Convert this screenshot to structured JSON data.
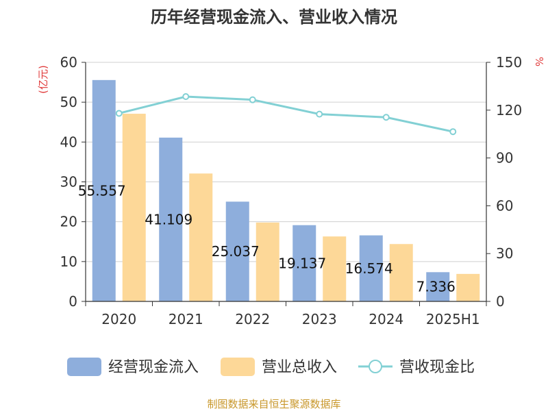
{
  "chart_data": {
    "type": "bar",
    "title": "历年经营现金流入、营业收入情况",
    "categories": [
      "2020",
      "2021",
      "2022",
      "2023",
      "2024",
      "2025H1"
    ],
    "y_left": {
      "unit": "(亿元)",
      "ylim": [
        0,
        60
      ],
      "ticks": [
        0,
        10,
        20,
        30,
        40,
        50,
        60
      ]
    },
    "y_right": {
      "unit": "%",
      "ylim": [
        0,
        150
      ],
      "ticks": [
        0,
        30,
        60,
        90,
        120,
        150
      ]
    },
    "series": [
      {
        "name": "经营现金流入",
        "kind": "bar",
        "axis": "left",
        "color": "#8eaedc",
        "values": [
          55.557,
          41.109,
          25.037,
          19.137,
          16.574,
          7.336
        ],
        "labels": [
          "55.557",
          "41.109",
          "25.037",
          "19.137",
          "16.574",
          "7.336"
        ]
      },
      {
        "name": "营业总收入",
        "kind": "bar",
        "axis": "left",
        "color": "#fdd898",
        "values": [
          47.1,
          32.1,
          19.8,
          16.3,
          14.4,
          6.9
        ]
      },
      {
        "name": "营收现金比",
        "kind": "line",
        "axis": "right",
        "color": "#82d0d4",
        "values": [
          118,
          128.5,
          126.5,
          117.5,
          115.5,
          106.5
        ]
      }
    ],
    "grid": true,
    "legend_position": "bottom"
  },
  "footer": {
    "source": "制图数据来自恒生聚源数据库"
  }
}
